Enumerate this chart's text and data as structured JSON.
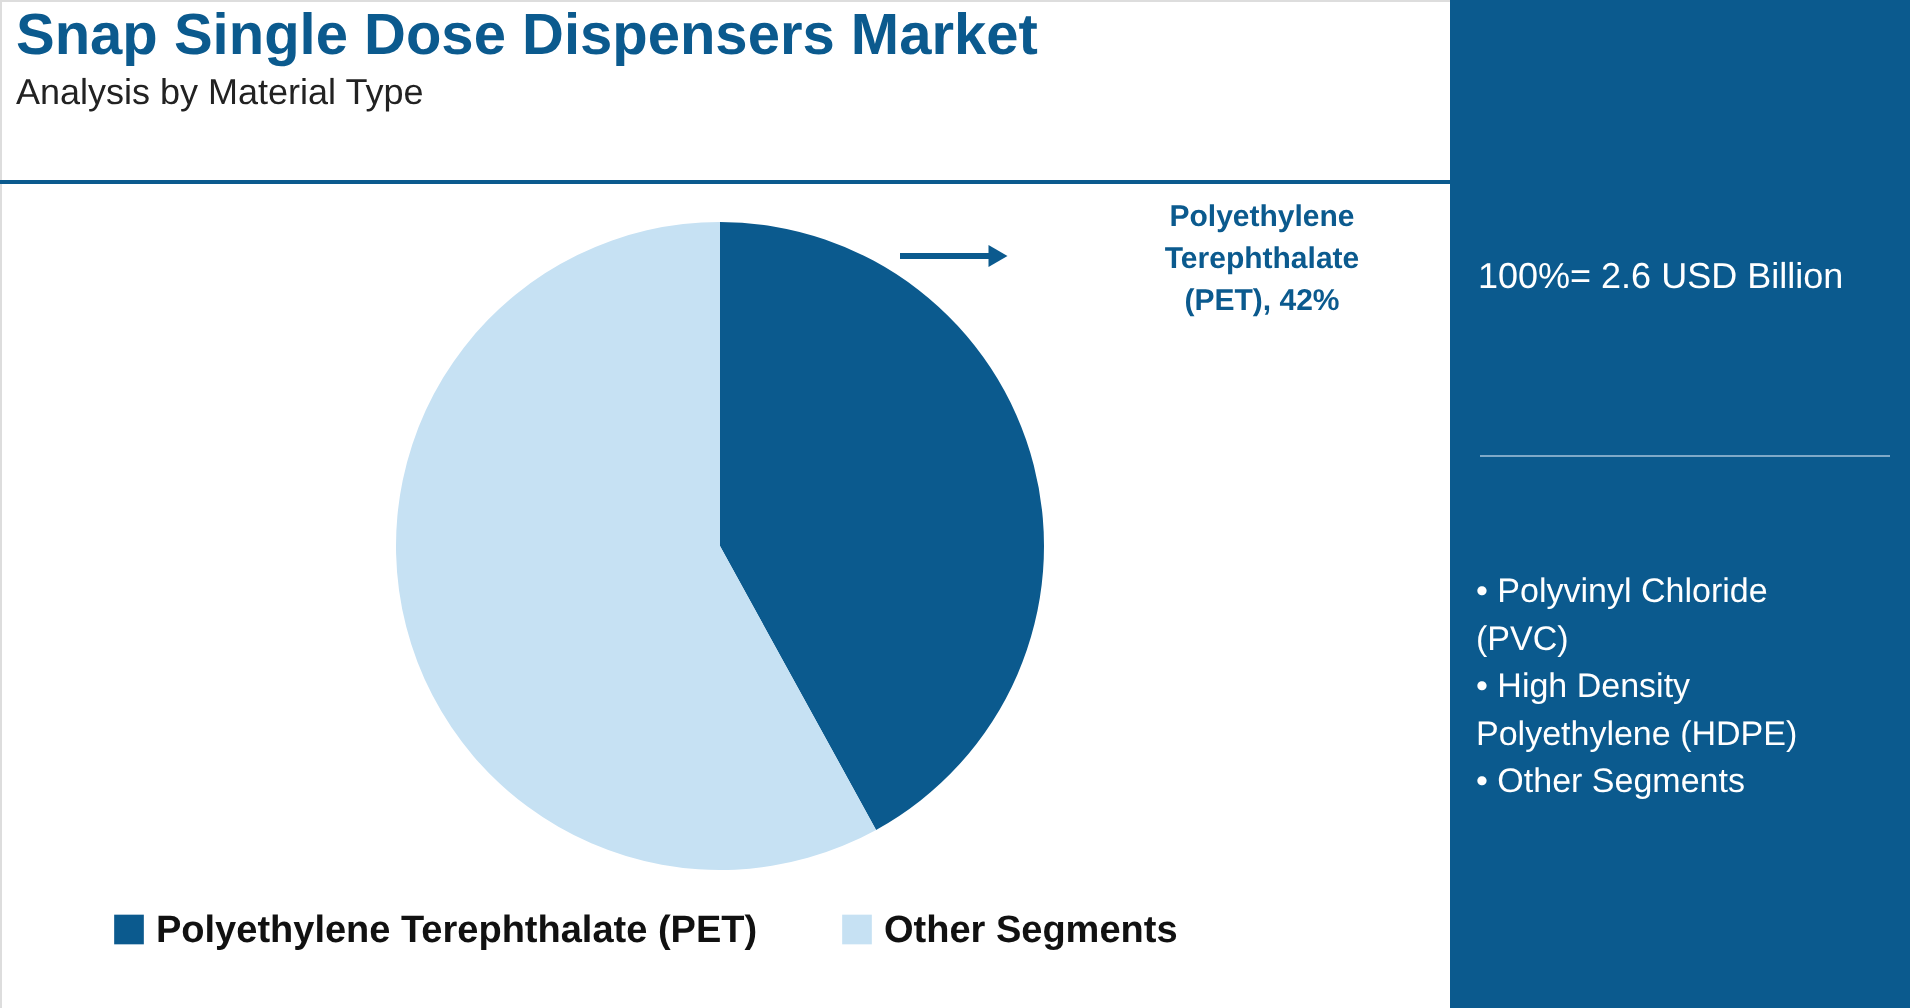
{
  "chart_data": {
    "type": "pie",
    "title": "Snap Single Dose Dispensers Market",
    "subtitle": "Analysis by Material Type",
    "categories": [
      "Polyethylene Terephthalate (PET)",
      "Other Segments"
    ],
    "values": [
      42,
      58
    ],
    "colors": [
      "#0b5a8e",
      "#c6e1f3"
    ],
    "legend": "bottom",
    "annotations": [
      "Polyethylene Terephthalate (PET), 42%",
      "100%= 2.6 USD Billion",
      "• Polyvinyl Chloride (PVC)",
      "• High Density Polyethylene (HDPE)",
      "• Other Segments"
    ]
  }
}
